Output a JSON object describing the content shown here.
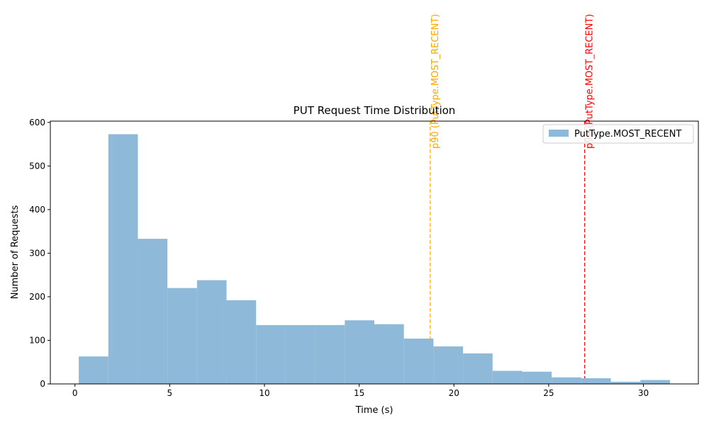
{
  "chart_data": {
    "type": "histogram",
    "title": "PUT Request Time Distribution",
    "xlabel": "Time (s)",
    "ylabel": "Number of Requests",
    "xlim": [
      -1.3,
      32.9
    ],
    "ylim": [
      0,
      603
    ],
    "xticks": [
      0,
      5,
      10,
      15,
      20,
      25,
      30
    ],
    "yticks": [
      0,
      100,
      200,
      300,
      400,
      500,
      600
    ],
    "grid": false,
    "legend_position": "top-right",
    "series": [
      {
        "name": "PutType.MOST_RECENT",
        "color": "#8fb9d9",
        "bins": [
          {
            "x0": 0.2,
            "x1": 1.76,
            "value": 63
          },
          {
            "x0": 1.76,
            "x1": 3.32,
            "value": 573
          },
          {
            "x0": 3.32,
            "x1": 4.88,
            "value": 333
          },
          {
            "x0": 4.88,
            "x1": 6.44,
            "value": 220
          },
          {
            "x0": 6.44,
            "x1": 8.0,
            "value": 238
          },
          {
            "x0": 8.0,
            "x1": 9.56,
            "value": 192
          },
          {
            "x0": 9.56,
            "x1": 11.12,
            "value": 135
          },
          {
            "x0": 11.12,
            "x1": 12.68,
            "value": 135
          },
          {
            "x0": 12.68,
            "x1": 14.24,
            "value": 135
          },
          {
            "x0": 14.24,
            "x1": 15.8,
            "value": 146
          },
          {
            "x0": 15.8,
            "x1": 17.36,
            "value": 137
          },
          {
            "x0": 17.36,
            "x1": 18.92,
            "value": 104
          },
          {
            "x0": 18.92,
            "x1": 20.48,
            "value": 86
          },
          {
            "x0": 20.48,
            "x1": 22.04,
            "value": 70
          },
          {
            "x0": 22.04,
            "x1": 23.6,
            "value": 30
          },
          {
            "x0": 23.6,
            "x1": 25.16,
            "value": 28
          },
          {
            "x0": 25.16,
            "x1": 26.72,
            "value": 15
          },
          {
            "x0": 26.72,
            "x1": 28.28,
            "value": 13
          },
          {
            "x0": 28.28,
            "x1": 29.84,
            "value": 5
          },
          {
            "x0": 29.84,
            "x1": 31.4,
            "value": 9
          }
        ]
      }
    ],
    "annotations": [
      {
        "label": "p90 (PutType.MOST_RECENT)",
        "x": 18.75,
        "color": "#ffa500"
      },
      {
        "label": "p99 (PutType.MOST_RECENT)",
        "x": 26.9,
        "color": "#ff0000"
      }
    ]
  }
}
